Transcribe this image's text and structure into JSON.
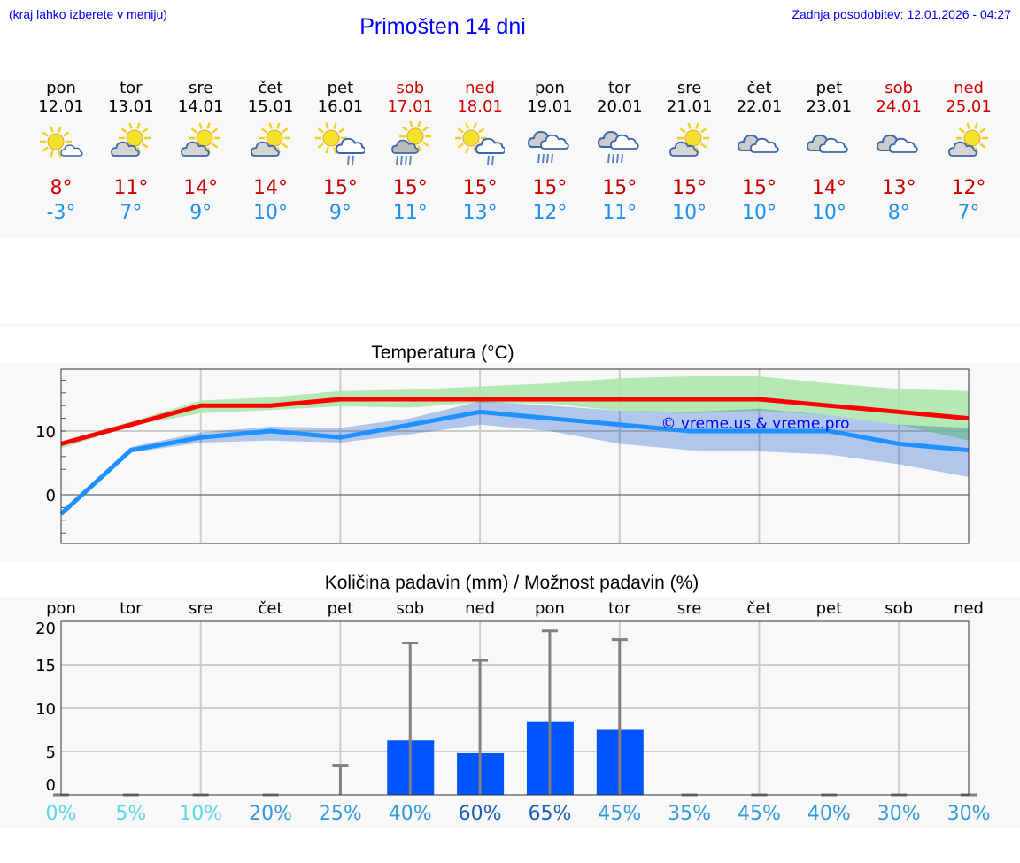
{
  "header": {
    "menu_hint": "(kraj lahko izberete v meniju)",
    "title": "Primošten 14 dni",
    "last_update": "Zadnja posodobitev: 12.01.2026 - 04:27"
  },
  "days": [
    {
      "name": "pon",
      "date": "12.01",
      "weekend": false,
      "icon": "sun-small-cloud",
      "max": "8°",
      "min": "-3°"
    },
    {
      "name": "tor",
      "date": "13.01",
      "weekend": false,
      "icon": "cloud-sun",
      "max": "11°",
      "min": "7°"
    },
    {
      "name": "sre",
      "date": "14.01",
      "weekend": false,
      "icon": "cloud-sun",
      "max": "14°",
      "min": "9°"
    },
    {
      "name": "čet",
      "date": "15.01",
      "weekend": false,
      "icon": "cloud-sun",
      "max": "14°",
      "min": "10°"
    },
    {
      "name": "pet",
      "date": "16.01",
      "weekend": false,
      "icon": "sun-cloud-rain",
      "max": "15°",
      "min": "9°"
    },
    {
      "name": "sob",
      "date": "17.01",
      "weekend": true,
      "icon": "cloud-sun-rain",
      "max": "15°",
      "min": "11°"
    },
    {
      "name": "ned",
      "date": "18.01",
      "weekend": true,
      "icon": "sun-cloud-rain",
      "max": "15°",
      "min": "13°"
    },
    {
      "name": "pon",
      "date": "19.01",
      "weekend": false,
      "icon": "cloud-rain",
      "max": "15°",
      "min": "12°"
    },
    {
      "name": "tor",
      "date": "20.01",
      "weekend": false,
      "icon": "cloud-rain",
      "max": "15°",
      "min": "11°"
    },
    {
      "name": "sre",
      "date": "21.01",
      "weekend": false,
      "icon": "cloud-sun",
      "max": "15°",
      "min": "10°"
    },
    {
      "name": "čet",
      "date": "22.01",
      "weekend": false,
      "icon": "cloudy",
      "max": "15°",
      "min": "10°"
    },
    {
      "name": "pet",
      "date": "23.01",
      "weekend": false,
      "icon": "cloudy",
      "max": "14°",
      "min": "10°"
    },
    {
      "name": "sob",
      "date": "24.01",
      "weekend": true,
      "icon": "cloudy",
      "max": "13°",
      "min": "8°"
    },
    {
      "name": "ned",
      "date": "25.01",
      "weekend": true,
      "icon": "cloud-sun",
      "max": "12°",
      "min": "7°"
    }
  ],
  "colors": {
    "max": "#ff0000",
    "min": "#1e90ff",
    "max_band": "#a8e6a8",
    "min_band": "#a8c4f0",
    "bar": "#0055ff",
    "errbar": "#808080",
    "pct_low": "#5ad7e8",
    "pct_mid": "#3399dd",
    "pct_high": "#1a5fb4"
  },
  "chart_data": [
    {
      "type": "line",
      "title": "Temperatura (°C)",
      "ylim": [
        -7.6,
        19.7
      ],
      "yticks": [
        "10",
        "0"
      ],
      "watermark": "© vreme.us & vreme.pro",
      "series": [
        {
          "name": "max",
          "values": [
            8,
            11,
            14,
            14,
            15,
            15,
            15,
            15,
            15,
            15,
            15,
            14,
            13,
            12
          ],
          "band_upper": [
            8.3,
            11.5,
            14.8,
            15.3,
            16.3,
            16.5,
            17,
            17.5,
            18.3,
            18.6,
            18.6,
            17.5,
            16.6,
            16.3
          ],
          "band_lower": [
            7.3,
            10.8,
            12.8,
            13.3,
            13.9,
            13.7,
            14.5,
            14.3,
            13.2,
            12.8,
            13.2,
            12.5,
            11,
            8.5
          ]
        },
        {
          "name": "min",
          "values": [
            -3,
            7,
            9,
            10,
            9,
            11,
            13,
            12,
            11,
            10,
            10,
            10,
            8,
            7
          ],
          "band_upper": [
            -3,
            7.5,
            9.8,
            10.7,
            10.5,
            12,
            14.7,
            14,
            13.2,
            13,
            13.5,
            12.5,
            11,
            10.5
          ],
          "band_lower": [
            -3,
            6.6,
            8.2,
            8.5,
            8.2,
            9.5,
            11,
            10,
            8,
            7,
            6.8,
            6.3,
            4.8,
            2.8
          ]
        }
      ]
    },
    {
      "type": "bar",
      "title": "Količina padavin (mm) / Možnost padavin (%)",
      "ylim": [
        -1.2,
        20
      ],
      "yticks": [
        "20",
        "15",
        "10",
        "5",
        "0"
      ],
      "categories": [
        "pon",
        "tor",
        "sre",
        "čet",
        "pet",
        "sob",
        "ned",
        "pon",
        "tor",
        "sre",
        "čet",
        "pet",
        "sob",
        "ned"
      ],
      "values": [
        0,
        0,
        0,
        0,
        0,
        6.3,
        4.8,
        8.4,
        7.5,
        0,
        0,
        0,
        0,
        0
      ],
      "error_max": [
        0,
        0,
        0,
        0,
        3.4,
        17.5,
        15.5,
        18.9,
        17.9,
        0,
        0,
        0,
        0,
        0
      ],
      "probability": [
        "0%",
        "5%",
        "10%",
        "20%",
        "25%",
        "40%",
        "60%",
        "65%",
        "45%",
        "35%",
        "45%",
        "40%",
        "30%",
        "30%"
      ]
    }
  ]
}
